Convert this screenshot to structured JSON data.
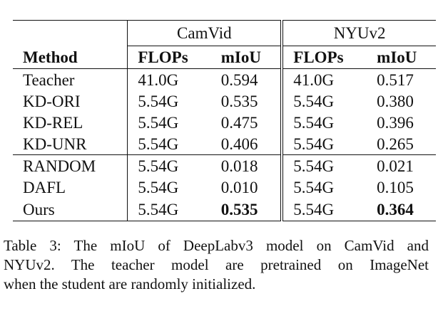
{
  "table": {
    "groups": [
      "CamVid",
      "NYUv2"
    ],
    "columns": [
      "Method",
      "FLOPs",
      "mIoU",
      "FLOPs",
      "mIoU"
    ],
    "rows": [
      {
        "method": "Teacher",
        "cam_flops": "41.0G",
        "cam_miou": "0.594",
        "nyu_flops": "41.0G",
        "nyu_miou": "0.517"
      },
      {
        "method": "KD-ORI",
        "cam_flops": "5.54G",
        "cam_miou": "0.535",
        "nyu_flops": "5.54G",
        "nyu_miou": "0.380"
      },
      {
        "method": "KD-REL",
        "cam_flops": "5.54G",
        "cam_miou": "0.475",
        "nyu_flops": "5.54G",
        "nyu_miou": "0.396"
      },
      {
        "method": "KD-UNR",
        "cam_flops": "5.54G",
        "cam_miou": "0.406",
        "nyu_flops": "5.54G",
        "nyu_miou": "0.265"
      },
      {
        "method": "RANDOM",
        "cam_flops": "5.54G",
        "cam_miou": "0.018",
        "nyu_flops": "5.54G",
        "nyu_miou": "0.021"
      },
      {
        "method": "DAFL",
        "cam_flops": "5.54G",
        "cam_miou": "0.010",
        "nyu_flops": "5.54G",
        "nyu_miou": "0.105"
      },
      {
        "method": "Ours",
        "cam_flops": "5.54G",
        "cam_miou": "0.535",
        "nyu_flops": "5.54G",
        "nyu_miou": "0.364"
      }
    ]
  },
  "caption": {
    "line1": "Table 3: The mIoU of DeepLabv3 model on CamVid and",
    "line2": "NYUv2.  The teacher model are pretrained on ImageNet",
    "line3": "when the student are randomly initialized."
  }
}
